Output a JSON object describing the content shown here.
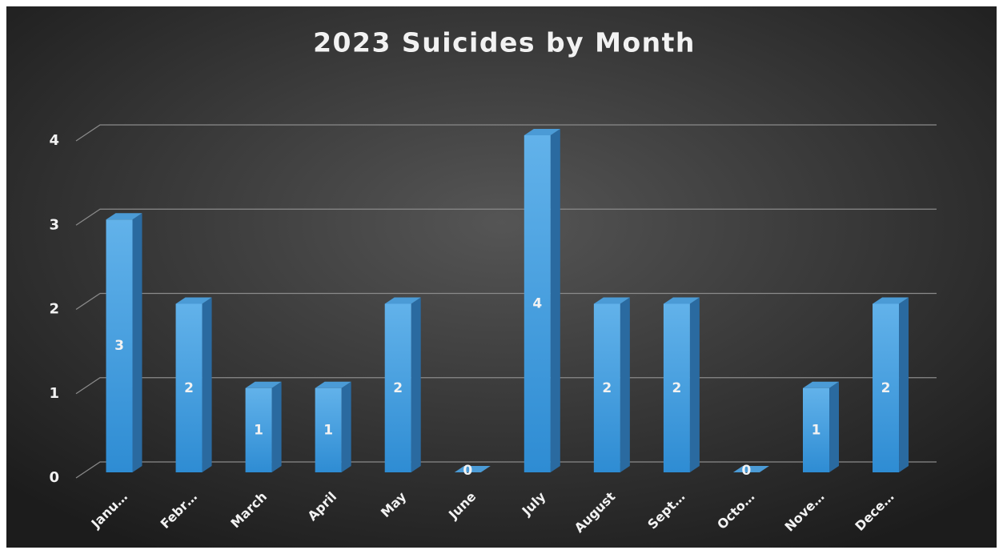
{
  "chart_data": {
    "type": "bar3d",
    "title": "2023 Suicides by Month",
    "categories": [
      "Janu…",
      "Febr…",
      "March",
      "April",
      "May",
      "June",
      "July",
      "August",
      "Sept…",
      "Octo…",
      "Nove…",
      "Dece…"
    ],
    "values": [
      3,
      2,
      1,
      1,
      2,
      0,
      4,
      2,
      2,
      0,
      1,
      2
    ],
    "color": "#3a9be0",
    "ylim": [
      0,
      4
    ],
    "yticks": [
      0,
      1,
      2,
      3,
      4
    ],
    "grid": true
  }
}
